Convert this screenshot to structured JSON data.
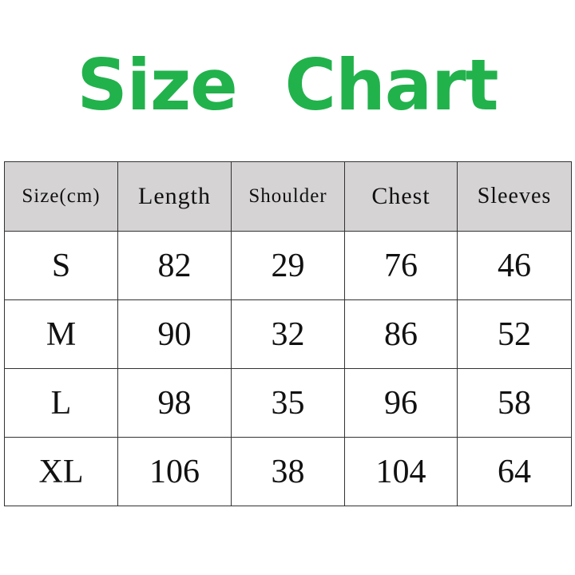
{
  "title": "Size Chart",
  "colors": {
    "title": "#22b24c",
    "header_bg": "#d5d3d3"
  },
  "table": {
    "headers": [
      "Size(cm)",
      "Length",
      "Shoulder",
      "Chest",
      "Sleeves"
    ],
    "rows": [
      [
        "S",
        "82",
        "29",
        "76",
        "46"
      ],
      [
        "M",
        "90",
        "32",
        "86",
        "52"
      ],
      [
        "L",
        "98",
        "35",
        "96",
        "58"
      ],
      [
        "XL",
        "106",
        "38",
        "104",
        "64"
      ]
    ]
  }
}
